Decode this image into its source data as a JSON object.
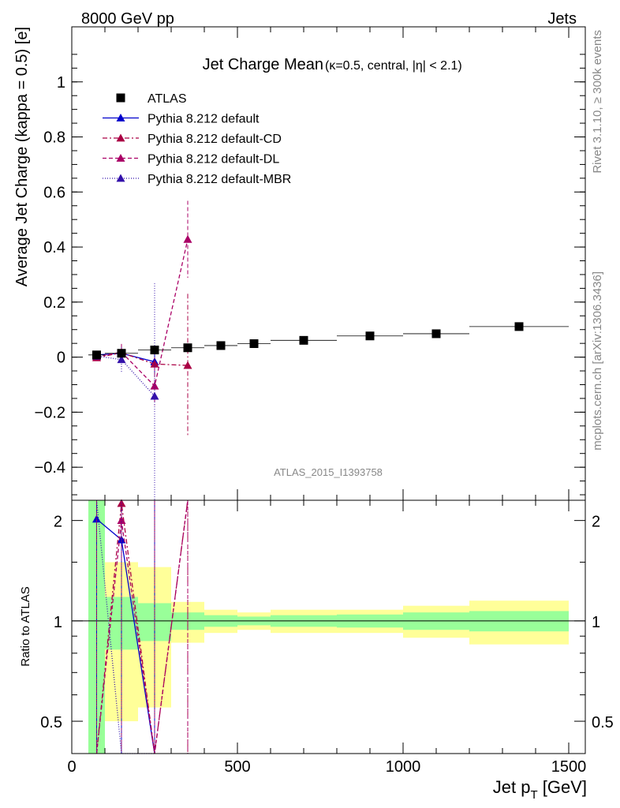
{
  "header": {
    "left": "8000 GeV pp",
    "right": "Jets"
  },
  "side": {
    "rivet": "Rivet 3.1.10, ≥ 300k events",
    "mcplots": "mcplots.cern.ch [arXiv:1306.3436]"
  },
  "chart_data": {
    "type": "scatter",
    "title": "Jet Charge Mean",
    "title_suffix": "(κ=0.5, central, |η| < 2.1)",
    "watermark": "ATLAS_2015_I1393758",
    "xlabel": "Jet p_T [GeV]",
    "xlabel_main": "Jet p",
    "xlabel_sub": "T",
    "xlabel_unit": " [GeV]",
    "ylabel": "Average Jet Charge (kappa = 0.5) [e]",
    "ratio_ylabel": "Ratio to ATLAS",
    "xlim": [
      0,
      1550
    ],
    "ylim": [
      -0.52,
      1.2
    ],
    "ratio_ylim": [
      0.4,
      2.3
    ],
    "ratio_log": true,
    "xticks": [
      0,
      500,
      1000,
      1500
    ],
    "yticks": [
      -0.4,
      -0.2,
      0,
      0.2,
      0.4,
      0.6,
      0.8,
      1
    ],
    "ytick_labels": [
      "−0.4",
      "−0.2",
      "0",
      "0.2",
      "0.4",
      "0.6",
      "0.8",
      "1"
    ],
    "ratio_yticks": [
      0.5,
      1,
      2
    ],
    "ratio_ytick_labels": [
      "0.5",
      "1",
      "2"
    ],
    "legend_position": "top-left",
    "data": {
      "name": "ATLAS",
      "color": "#000000",
      "x": [
        75,
        150,
        250,
        350,
        450,
        550,
        700,
        900,
        1100,
        1350
      ],
      "xlo": [
        50,
        100,
        200,
        300,
        400,
        500,
        600,
        800,
        1000,
        1200
      ],
      "xhi": [
        100,
        200,
        300,
        400,
        500,
        600,
        800,
        1000,
        1200,
        1500
      ],
      "y": [
        0.008,
        0.014,
        0.026,
        0.034,
        0.042,
        0.049,
        0.061,
        0.077,
        0.085,
        0.111
      ],
      "band_stat": [
        2.5,
        0.18,
        0.13,
        0.06,
        0.04,
        0.03,
        0.04,
        0.045,
        0.06,
        0.07
      ],
      "band_tot": [
        2.5,
        0.5,
        0.45,
        0.14,
        0.08,
        0.06,
        0.08,
        0.08,
        0.11,
        0.15
      ]
    },
    "series": [
      {
        "name": "Pythia 8.212 default",
        "color": "#0000cc",
        "dash": "",
        "x": [
          75,
          150,
          250
        ],
        "y": [
          0.008,
          0.014,
          -0.017
        ],
        "err": [
          0.015,
          0.03,
          0.04
        ],
        "ratio": [
          2.02,
          1.75,
          0.35
        ]
      },
      {
        "name": "Pythia 8.212 default-CD",
        "color": "#aa0044",
        "dash": "6,3,2,3",
        "x": [
          75,
          150,
          250,
          350
        ],
        "y": [
          -0.002,
          0.016,
          -0.025,
          -0.03
        ],
        "err": [
          0.012,
          0.03,
          0.05,
          0.26
        ],
        "ratio": [
          0.3,
          2.25,
          0.3,
          2.6
        ]
      },
      {
        "name": "Pythia 8.212 default-DL",
        "color": "#aa0066",
        "dash": "5,3",
        "x": [
          75,
          150,
          250,
          350
        ],
        "y": [
          0.002,
          0.018,
          -0.105,
          0.428
        ],
        "err": [
          0.012,
          0.03,
          0.07,
          0.14
        ],
        "ratio": [
          0.3,
          2.0,
          0.3,
          2.6
        ]
      },
      {
        "name": "Pythia 8.212 default-MBR",
        "color": "#3311aa",
        "dash": "1,2",
        "x": [
          75,
          150,
          250
        ],
        "y": [
          0.004,
          -0.009,
          -0.142
        ],
        "err": [
          0.015,
          0.045,
          0.41
        ],
        "ratio": [
          2.6,
          0.3,
          0.3
        ]
      }
    ]
  }
}
